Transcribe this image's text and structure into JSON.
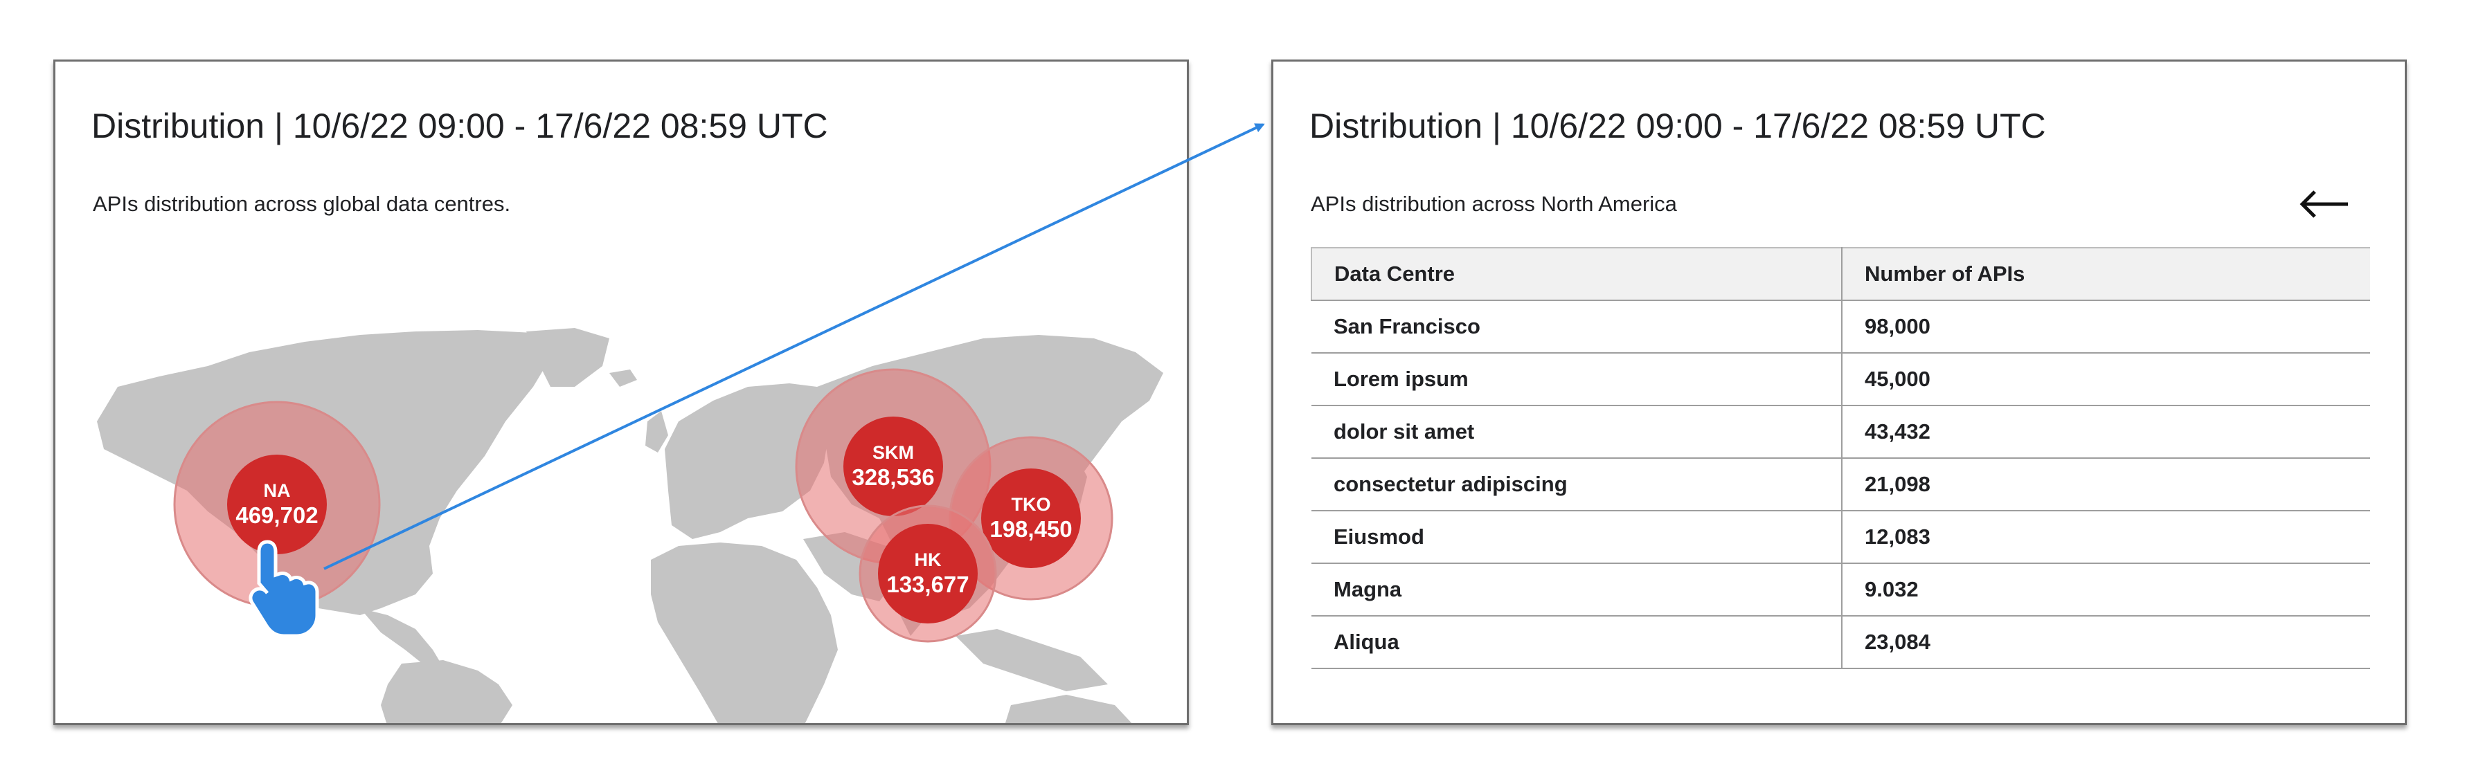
{
  "left_panel": {
    "title": "Distribution | 10/6/22 09:00 - 17/6/22 08:59 UTC",
    "subtitle": "APIs distribution across global data centres.",
    "bubbles": [
      {
        "code": "NA",
        "value": "469,702"
      },
      {
        "code": "SKM",
        "value": "328,536"
      },
      {
        "code": "TKO",
        "value": "198,450"
      },
      {
        "code": "HK",
        "value": "133,677"
      }
    ]
  },
  "right_panel": {
    "title": "Distribution | 10/6/22 09:00 - 17/6/22 08:59 UTC",
    "subtitle": "APIs distribution across North America",
    "back_icon": "left-arrow-icon",
    "table": {
      "columns": [
        "Data Centre",
        "Number of APIs"
      ],
      "rows": [
        [
          "San Francisco",
          "98,000"
        ],
        [
          "Lorem ipsum",
          "45,000"
        ],
        [
          "dolor sit amet",
          "43,432"
        ],
        [
          "consectetur adipiscing",
          "21,098"
        ],
        [
          "Eiusmod",
          "12,083"
        ],
        [
          "Magna",
          "9.032"
        ],
        [
          "Aliqua",
          "23,084"
        ]
      ]
    }
  },
  "colors": {
    "bubble_core": "#cf2a2a",
    "bubble_halo": "#e57373",
    "map_land": "#c4c4c4",
    "connector": "#2f86e0",
    "cursor": "#2f86e0"
  }
}
